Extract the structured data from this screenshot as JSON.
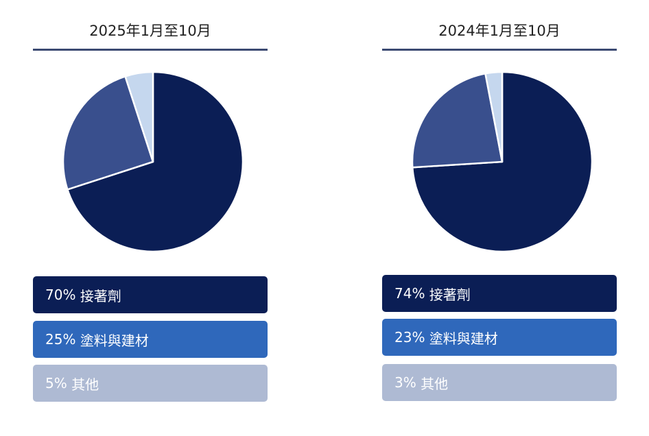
{
  "chart_data": [
    {
      "type": "pie",
      "title": "2025年1月至10月",
      "slices": [
        {
          "label": "接著劑",
          "value": 70,
          "pct_text": "70%",
          "color": "#0b1e55",
          "legend_color": "#0b1e55",
          "legend_text_color": "#ffffff"
        },
        {
          "label": "塗料與建材",
          "value": 25,
          "pct_text": "25%",
          "color": "#394f8d",
          "legend_color": "#2f68bb",
          "legend_text_color": "#ffffff"
        },
        {
          "label": "其他",
          "value": 5,
          "pct_text": "5%",
          "color": "#c5d7ee",
          "legend_color": "#aebad3",
          "legend_text_color": "#ffffff"
        }
      ]
    },
    {
      "type": "pie",
      "title": "2024年1月至10月",
      "slices": [
        {
          "label": "接著劑",
          "value": 74,
          "pct_text": "74%",
          "color": "#0b1e55",
          "legend_color": "#0b1e55",
          "legend_text_color": "#ffffff"
        },
        {
          "label": "塗料與建材",
          "value": 23,
          "pct_text": "23%",
          "color": "#394f8d",
          "legend_color": "#2f68bb",
          "legend_text_color": "#ffffff"
        },
        {
          "label": "其他",
          "value": 3,
          "pct_text": "3%",
          "color": "#c5d7ee",
          "legend_color": "#aebad3",
          "legend_text_color": "#ffffff"
        }
      ]
    }
  ],
  "colors": {
    "title_rule": "#3b4a72",
    "slice_border": "#ffffff"
  }
}
